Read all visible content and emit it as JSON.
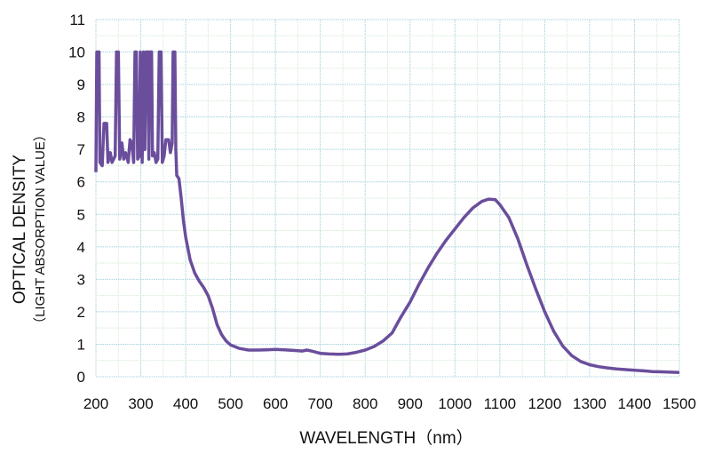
{
  "chart_data": {
    "type": "line",
    "title": "",
    "xlabel": "WAVELENGTH（nm）",
    "ylabel": "OPTICAL DENSITY",
    "ylabel_sub": "（LIGHT ABSORPTION VALUE）",
    "xlim": [
      200,
      1500
    ],
    "ylim": [
      0,
      11
    ],
    "xticks": [
      200,
      300,
      400,
      500,
      600,
      700,
      800,
      900,
      1000,
      1100,
      1200,
      1300,
      1400,
      1500
    ],
    "yticks": [
      0,
      1,
      2,
      3,
      4,
      5,
      6,
      7,
      8,
      9,
      10,
      11
    ],
    "grid": true,
    "legend": "none",
    "series": [
      {
        "name": "optical density",
        "color": "#6a4e9c",
        "points": [
          [
            200,
            6.3
          ],
          [
            202,
            10
          ],
          [
            207,
            10
          ],
          [
            209,
            6.6
          ],
          [
            214,
            6.5
          ],
          [
            218,
            7.8
          ],
          [
            224,
            7.8
          ],
          [
            227,
            6.6
          ],
          [
            232,
            6.9
          ],
          [
            236,
            6.6
          ],
          [
            243,
            6.8
          ],
          [
            246,
            10
          ],
          [
            250,
            10
          ],
          [
            253,
            6.7
          ],
          [
            258,
            7.2
          ],
          [
            262,
            6.7
          ],
          [
            266,
            6.9
          ],
          [
            272,
            6.6
          ],
          [
            276,
            7.3
          ],
          [
            280,
            7.2
          ],
          [
            284,
            6.6
          ],
          [
            287,
            10
          ],
          [
            290,
            10
          ],
          [
            293,
            6.7
          ],
          [
            297,
            6.8
          ],
          [
            299,
            10
          ],
          [
            303,
            6.6
          ],
          [
            306,
            10
          ],
          [
            309,
            7.0
          ],
          [
            312,
            10
          ],
          [
            316,
            10
          ],
          [
            318,
            6.7
          ],
          [
            320,
            10
          ],
          [
            324,
            10
          ],
          [
            326,
            6.8
          ],
          [
            330,
            6.9
          ],
          [
            334,
            6.6
          ],
          [
            338,
            6.7
          ],
          [
            341,
            10
          ],
          [
            345,
            10
          ],
          [
            348,
            6.6
          ],
          [
            352,
            6.8
          ],
          [
            356,
            7.3
          ],
          [
            362,
            7.3
          ],
          [
            366,
            6.9
          ],
          [
            370,
            7.2
          ],
          [
            372,
            10
          ],
          [
            376,
            10
          ],
          [
            378,
            7.0
          ],
          [
            380,
            6.2
          ],
          [
            385,
            6.1
          ],
          [
            390,
            5.5
          ],
          [
            395,
            4.8
          ],
          [
            400,
            4.3
          ],
          [
            410,
            3.6
          ],
          [
            420,
            3.2
          ],
          [
            430,
            2.95
          ],
          [
            440,
            2.75
          ],
          [
            450,
            2.5
          ],
          [
            460,
            2.1
          ],
          [
            470,
            1.6
          ],
          [
            480,
            1.3
          ],
          [
            490,
            1.1
          ],
          [
            500,
            0.98
          ],
          [
            520,
            0.87
          ],
          [
            540,
            0.82
          ],
          [
            560,
            0.82
          ],
          [
            580,
            0.83
          ],
          [
            600,
            0.84
          ],
          [
            620,
            0.83
          ],
          [
            640,
            0.81
          ],
          [
            660,
            0.79
          ],
          [
            670,
            0.82
          ],
          [
            680,
            0.79
          ],
          [
            700,
            0.72
          ],
          [
            720,
            0.7
          ],
          [
            740,
            0.69
          ],
          [
            760,
            0.7
          ],
          [
            780,
            0.75
          ],
          [
            800,
            0.82
          ],
          [
            820,
            0.93
          ],
          [
            840,
            1.1
          ],
          [
            860,
            1.35
          ],
          [
            870,
            1.6
          ],
          [
            880,
            1.85
          ],
          [
            900,
            2.3
          ],
          [
            920,
            2.85
          ],
          [
            940,
            3.35
          ],
          [
            960,
            3.8
          ],
          [
            980,
            4.2
          ],
          [
            1000,
            4.55
          ],
          [
            1020,
            4.9
          ],
          [
            1040,
            5.2
          ],
          [
            1060,
            5.4
          ],
          [
            1075,
            5.47
          ],
          [
            1090,
            5.45
          ],
          [
            1100,
            5.3
          ],
          [
            1120,
            4.9
          ],
          [
            1140,
            4.25
          ],
          [
            1160,
            3.45
          ],
          [
            1180,
            2.7
          ],
          [
            1200,
            2.0
          ],
          [
            1220,
            1.4
          ],
          [
            1240,
            0.95
          ],
          [
            1260,
            0.65
          ],
          [
            1280,
            0.47
          ],
          [
            1300,
            0.37
          ],
          [
            1320,
            0.31
          ],
          [
            1340,
            0.27
          ],
          [
            1360,
            0.24
          ],
          [
            1380,
            0.22
          ],
          [
            1400,
            0.2
          ],
          [
            1420,
            0.18
          ],
          [
            1440,
            0.16
          ],
          [
            1460,
            0.15
          ],
          [
            1480,
            0.14
          ],
          [
            1500,
            0.13
          ]
        ]
      }
    ]
  }
}
